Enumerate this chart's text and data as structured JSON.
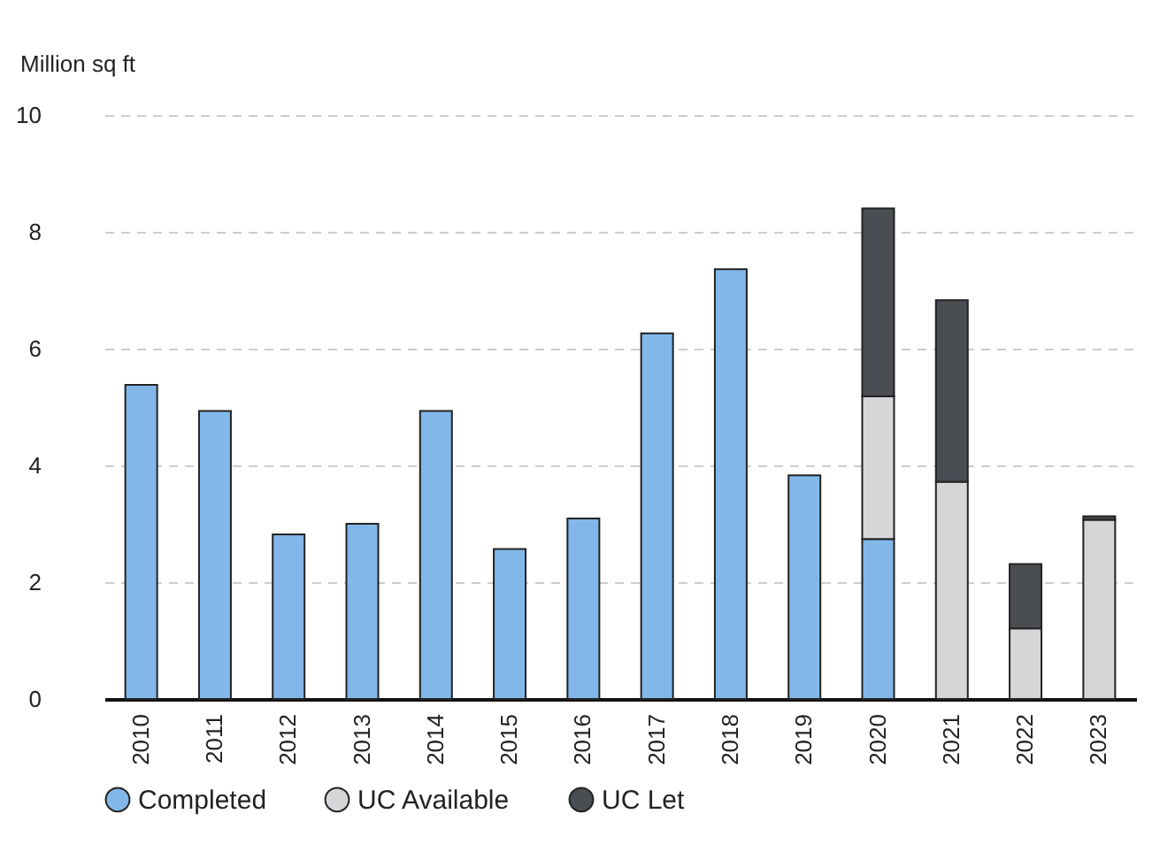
{
  "chart_data": {
    "type": "bar",
    "ylabel": "Million sq ft",
    "stacked": true,
    "categories": [
      "2010",
      "2011",
      "2012",
      "2013",
      "2014",
      "2015",
      "2016",
      "2017",
      "2018",
      "2019",
      "2020",
      "2021",
      "2022",
      "2023"
    ],
    "series": [
      {
        "name": "Completed",
        "color": "#82b8e9",
        "values": [
          5.38,
          4.93,
          2.82,
          3.0,
          4.93,
          2.57,
          3.09,
          6.26,
          7.36,
          3.83,
          2.74,
          null,
          null,
          null
        ]
      },
      {
        "name": "UC Available",
        "color": "#d6d6d8",
        "values": [
          null,
          null,
          null,
          null,
          null,
          null,
          null,
          null,
          null,
          null,
          2.44,
          3.72,
          1.21,
          3.07
        ]
      },
      {
        "name": "UC Let",
        "color": "#4a4d52",
        "values": [
          null,
          null,
          null,
          null,
          null,
          null,
          null,
          null,
          null,
          null,
          3.22,
          3.11,
          1.1,
          0.06
        ]
      }
    ],
    "ylim": [
      0,
      10
    ],
    "yticks": [
      0,
      2,
      4,
      6,
      8,
      10
    ],
    "grid": "y",
    "legend": "bottom"
  }
}
